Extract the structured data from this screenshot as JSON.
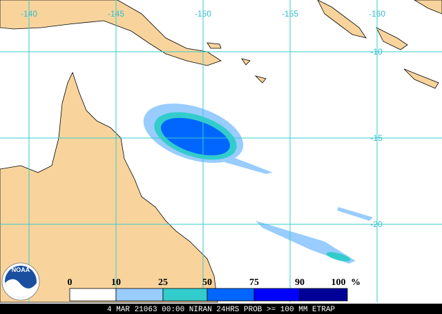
{
  "map": {
    "lon_labels": [
      -140,
      -145,
      -150,
      -155,
      -160
    ],
    "lat_labels": [
      -10,
      -15,
      -20
    ]
  },
  "logo": "NOAA",
  "legend": {
    "labels": [
      0,
      10,
      25,
      50,
      75,
      90,
      100
    ],
    "unit": "%",
    "colors": [
      "#ffffff",
      "#99ccff",
      "#33cccc",
      "#0066ff",
      "#0000ff",
      "#000099"
    ]
  },
  "footer": "4 MAR 21063 00:00 NIRAN 24HRS PROB >= 100 MM ETRAP"
}
